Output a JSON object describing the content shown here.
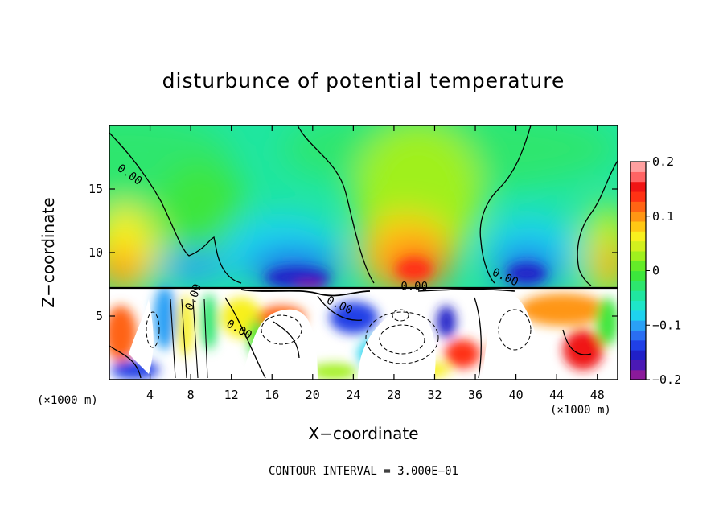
{
  "chart_data": {
    "type": "heatmap",
    "title": "disturbunce of potential temperature",
    "xlabel": "X−coordinate",
    "ylabel": "Z−coordinate",
    "x_unit": "(×1000 m)",
    "z_unit": "(×1000 m)",
    "xlim": [
      0,
      50
    ],
    "ylim": [
      0,
      20
    ],
    "x_ticks": [
      4,
      8,
      12,
      16,
      20,
      24,
      28,
      32,
      36,
      40,
      44,
      48
    ],
    "y_ticks": [
      5,
      10,
      15
    ],
    "colorbar": {
      "range": [
        -0.2,
        0.2
      ],
      "tick_values": [
        0.2,
        0.1,
        0,
        -0.1,
        -0.2
      ],
      "tick_labels": [
        "0.2",
        "0.1",
        "0",
        "−0.1",
        "−0.2"
      ],
      "colors": [
        "#8b1a9a",
        "#4b19b5",
        "#2020c8",
        "#2040e6",
        "#2a6ef2",
        "#2aa0f5",
        "#1ed2ee",
        "#1ee6c8",
        "#20e6a0",
        "#2de66e",
        "#3ce63c",
        "#64ec28",
        "#a0f01e",
        "#d2f01e",
        "#f8f01e",
        "#ffc814",
        "#ff9614",
        "#ff6414",
        "#ff3214",
        "#f01414",
        "#ff6464",
        "#ffa0a0"
      ]
    },
    "contour_labels": [
      {
        "text": "0.00",
        "x": 1.8,
        "z": 15.9,
        "angle": 35
      },
      {
        "text": "0.00",
        "x": 30,
        "z": 7.05,
        "angle": 0
      },
      {
        "text": "0.00",
        "x": 38.8,
        "z": 7.8,
        "angle": 25
      },
      {
        "text": "0.00",
        "x": 22.5,
        "z": 5.6,
        "angle": 25
      },
      {
        "text": "0.00",
        "x": 12.6,
        "z": 3.7,
        "angle": 30
      },
      {
        "text": "0.00",
        "x": 8.6,
        "z": 6.4,
        "angle": -70
      }
    ],
    "contour_interval_text": "CONTOUR INTERVAL = 3.000E−01",
    "colors": {
      "frame": "#000000",
      "background": "#ffffff",
      "field_base": "#20e6a0"
    }
  }
}
